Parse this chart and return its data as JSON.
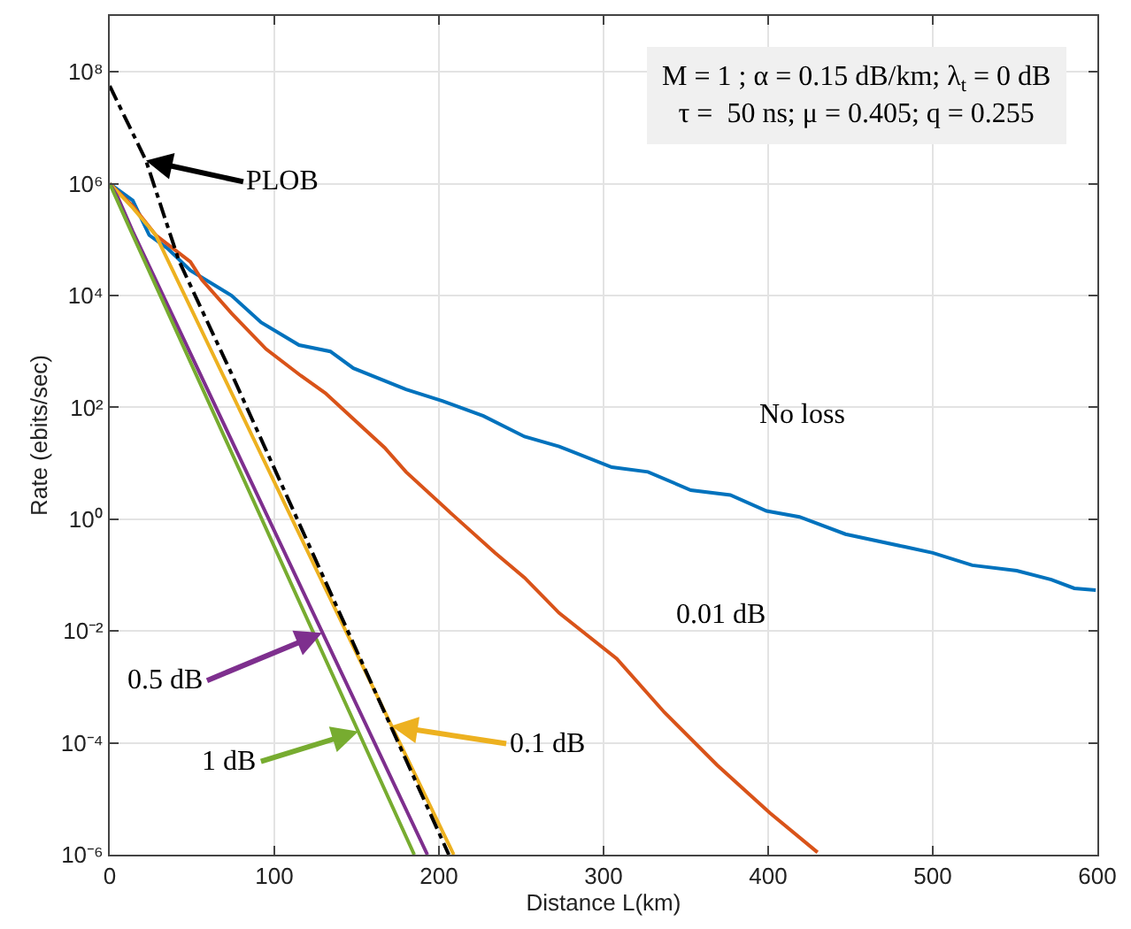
{
  "chart_data": {
    "type": "line",
    "xlabel": "Distance L(km)",
    "ylabel": "Rate (ebits/sec)",
    "log": "y",
    "grid": true,
    "marker": "none",
    "xlim": [
      0,
      600
    ],
    "xticks": [
      0,
      100,
      200,
      300,
      400,
      500,
      600
    ],
    "ylim": [
      1e-06,
      1000000000.0
    ],
    "yticks": [
      {
        "value": 1e-06,
        "label": "10⁻⁶"
      },
      {
        "value": 0.0001,
        "label": "10⁻⁴"
      },
      {
        "value": 0.01,
        "label": "10⁻²"
      },
      {
        "value": 1,
        "label": "10⁰"
      },
      {
        "value": 100,
        "label": "10²"
      },
      {
        "value": 10000,
        "label": "10⁴"
      },
      {
        "value": 1000000,
        "label": "10⁶"
      },
      {
        "value": 100000000,
        "label": "10⁸"
      }
    ],
    "series": [
      {
        "color": "#0072bd",
        "line_style": "solid",
        "x": [
          0,
          14,
          24,
          35,
          49,
          74,
          92,
          115,
          134,
          148,
          180,
          202,
          227,
          252,
          273,
          305,
          327,
          353,
          377,
          399,
          419,
          447,
          483,
          500,
          524,
          551,
          572,
          586,
          599
        ],
        "values": [
          1000000,
          500000,
          120000,
          70000,
          28000,
          10000,
          3300,
          1300,
          1000,
          500,
          210,
          130,
          70,
          30,
          20,
          8.5,
          7,
          3.3,
          2.7,
          1.4,
          1.1,
          0.54,
          0.32,
          0.25,
          0.15,
          0.12,
          0.083,
          0.058,
          0.054
        ]
      },
      {
        "color": "#d95319",
        "line_style": "solid",
        "x": [
          0,
          14,
          28,
          49,
          56,
          74,
          95,
          116,
          131,
          148,
          167,
          180,
          207,
          234,
          252,
          273,
          308,
          337,
          369,
          401,
          430
        ],
        "values": [
          1000000,
          400000,
          120000,
          40000,
          19000,
          4800,
          1100,
          370,
          180,
          62,
          19,
          7,
          1.3,
          0.25,
          0.09,
          0.021,
          0.0032,
          0.00035,
          4e-05,
          5.6e-06,
          1.1e-06
        ]
      },
      {
        "color": "#edb120",
        "line_style": "solid",
        "x": [
          0,
          14,
          28,
          145,
          209
        ],
        "values": [
          1000000,
          370000,
          120000,
          0.008,
          1e-06
        ]
      },
      {
        "color": "#7e2f8e",
        "line_style": "solid",
        "x": [
          0,
          5,
          14,
          193
        ],
        "values": [
          1000000,
          560000,
          140000,
          1e-06
        ]
      },
      {
        "color": "#77ac30",
        "line_style": "solid",
        "x": [
          0,
          14,
          185
        ],
        "values": [
          1000000,
          120000,
          1e-06
        ]
      },
      {
        "color": "#000000",
        "line_style": "dashed",
        "x": [
          0,
          22,
          42,
          74,
          206
        ],
        "values": [
          56000000,
          2600000,
          42000,
          400,
          1e-06
        ]
      }
    ],
    "annotations": [
      "M = 1 ; α = 0.15 dB/km; λ$_{t}$ = 0 dB\nτ =  50 ns; μ = 0.405; q = 0.255",
      {
        "text": "PLOB",
        "x": 22,
        "y": 2600000
      },
      "No loss",
      "0.01 dB",
      {
        "text": "0.5 dB",
        "x": 129,
        "y": 0.0093
      },
      {
        "text": "1 dB",
        "x": 151,
        "y": 0.00016
      },
      {
        "text": "0.1 dB",
        "x": 171,
        "y": 0.0002
      }
    ]
  }
}
